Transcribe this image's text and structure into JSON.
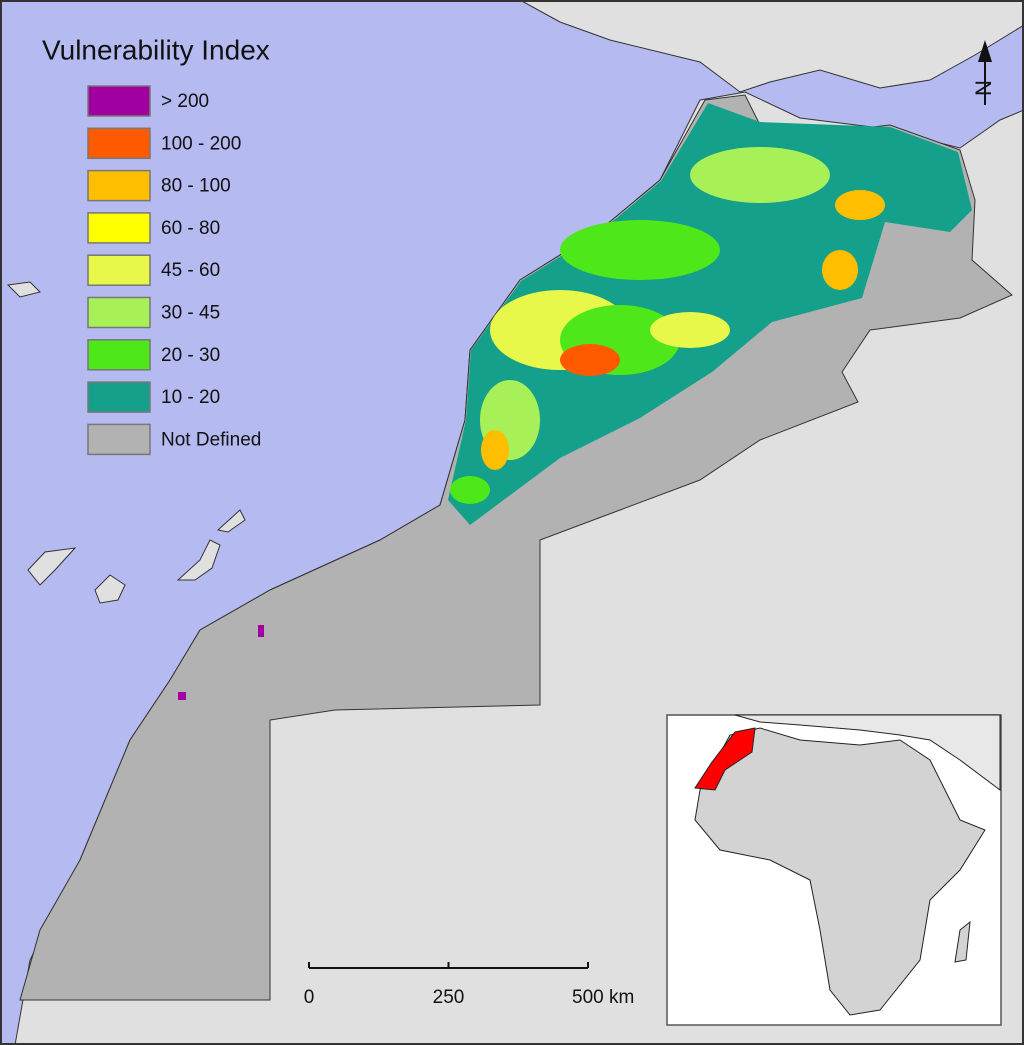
{
  "legend": {
    "title": "Vulnerability Index",
    "items": [
      {
        "label": "> 200",
        "color": "#a000a0"
      },
      {
        "label": "100 - 200",
        "color": "#ff5a00"
      },
      {
        "label": "80 - 100",
        "color": "#ffbe00"
      },
      {
        "label": "60 - 80",
        "color": "#ffff00"
      },
      {
        "label": "45 - 60",
        "color": "#e8f84a"
      },
      {
        "label": "30 - 45",
        "color": "#a8f058"
      },
      {
        "label": "20 - 30",
        "color": "#4ee81a"
      },
      {
        "label": "10 - 20",
        "color": "#14a08a"
      },
      {
        "label": "Not Defined",
        "color": "#b2b2b2"
      }
    ]
  },
  "scale_bar": {
    "labels": [
      "0",
      "250",
      "500 km"
    ]
  },
  "north_arrow": {
    "label": "N"
  }
}
